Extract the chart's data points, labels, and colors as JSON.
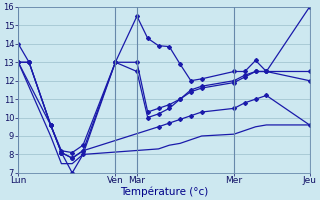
{
  "background_color": "#cde8f0",
  "grid_color": "#9bbfcc",
  "line_color": "#1a1aaa",
  "xlabel": "Température (°c)",
  "ylim": [
    7,
    16
  ],
  "yticks": [
    7,
    8,
    9,
    10,
    11,
    12,
    13,
    14,
    15,
    16
  ],
  "day_labels": [
    "Lun",
    "Ven",
    "Mar",
    "Mer",
    "Jeu"
  ],
  "day_positions": [
    0,
    9,
    11,
    20,
    27
  ],
  "xlim": [
    0,
    27
  ],
  "series": [
    {
      "x": [
        0,
        1,
        3,
        4,
        5,
        6,
        9,
        11,
        12,
        13,
        14,
        15,
        16,
        17,
        20,
        21,
        22,
        23,
        27
      ],
      "y": [
        14,
        13,
        9.6,
        8.1,
        7.0,
        8.0,
        13.0,
        15.5,
        14.3,
        13.9,
        13.85,
        12.9,
        12.0,
        12.1,
        12.5,
        12.5,
        13.1,
        12.5,
        16.0
      ],
      "has_markers": true
    },
    {
      "x": [
        0,
        1,
        3,
        4,
        5,
        6,
        9,
        11,
        12,
        13,
        14,
        15,
        16,
        17,
        20,
        21,
        22,
        23,
        27
      ],
      "y": [
        13,
        13,
        9.6,
        8.2,
        8.1,
        8.5,
        13.0,
        13.0,
        10.3,
        10.5,
        10.7,
        11.0,
        11.5,
        11.7,
        12.0,
        12.3,
        12.5,
        12.5,
        12.5
      ],
      "has_markers": true
    },
    {
      "x": [
        0,
        1,
        3,
        4,
        5,
        6,
        9,
        11,
        12,
        13,
        14,
        15,
        16,
        17,
        20,
        21,
        22,
        23,
        27
      ],
      "y": [
        13,
        13,
        9.6,
        8.1,
        7.8,
        8.2,
        13.0,
        12.5,
        10.0,
        10.2,
        10.5,
        11.0,
        11.4,
        11.6,
        11.9,
        12.2,
        12.5,
        12.5,
        12.0
      ],
      "has_markers": true
    },
    {
      "x": [
        0,
        3,
        4,
        5,
        6,
        13,
        14,
        15,
        16,
        17,
        20,
        21,
        22,
        23,
        27
      ],
      "y": [
        13,
        9.6,
        8.1,
        7.8,
        8.2,
        9.5,
        9.7,
        9.9,
        10.1,
        10.3,
        10.5,
        10.8,
        11.0,
        11.2,
        9.6
      ],
      "has_markers": true
    },
    {
      "x": [
        0,
        3,
        4,
        5,
        6,
        13,
        14,
        15,
        16,
        17,
        20,
        21,
        22,
        23,
        27
      ],
      "y": [
        13,
        9.0,
        7.5,
        7.5,
        8.0,
        8.3,
        8.5,
        8.6,
        8.8,
        9.0,
        9.1,
        9.3,
        9.5,
        9.6,
        9.6
      ],
      "has_markers": false
    }
  ]
}
